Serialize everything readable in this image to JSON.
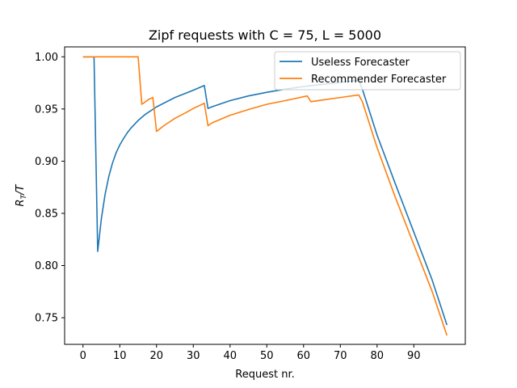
{
  "chart_data": {
    "type": "line",
    "title": "Zipf requests with C = 75, L = 5000",
    "xlabel": "Request nr.",
    "ylabel_main": "R",
    "ylabel_sub": "T",
    "ylabel_tail": "/T",
    "xlim": [
      -5,
      104
    ],
    "ylim": [
      0.7245,
      1.0095
    ],
    "xticks": [
      0,
      10,
      20,
      30,
      40,
      50,
      60,
      70,
      80,
      90
    ],
    "yticks": [
      0.75,
      0.8,
      0.85,
      0.9,
      0.95,
      1.0
    ],
    "ytick_labels": [
      "0.75",
      "0.80",
      "0.85",
      "0.90",
      "0.95",
      "1.00"
    ],
    "grid": false,
    "legend_position": "upper-right",
    "series": [
      {
        "name": "Useless Forecaster",
        "color": "#1f77b4",
        "points": [
          [
            0,
            1.0
          ],
          [
            3,
            1.0
          ],
          [
            4,
            0.8135
          ],
          [
            5,
            0.845
          ],
          [
            6,
            0.868
          ],
          [
            7,
            0.885
          ],
          [
            8,
            0.898
          ],
          [
            9,
            0.908
          ],
          [
            10,
            0.9155
          ],
          [
            11,
            0.9215
          ],
          [
            12,
            0.927
          ],
          [
            13,
            0.9315
          ],
          [
            15,
            0.939
          ],
          [
            17,
            0.945
          ],
          [
            20,
            0.952
          ],
          [
            25,
            0.961
          ],
          [
            30,
            0.968
          ],
          [
            33,
            0.9725
          ],
          [
            34,
            0.9505
          ],
          [
            35,
            0.952
          ],
          [
            40,
            0.958
          ],
          [
            45,
            0.9625
          ],
          [
            50,
            0.966
          ],
          [
            55,
            0.969
          ],
          [
            60,
            0.9715
          ],
          [
            65,
            0.9735
          ],
          [
            70,
            0.9755
          ],
          [
            75,
            0.9775
          ],
          [
            76,
            0.969
          ],
          [
            80,
            0.925
          ],
          [
            85,
            0.878
          ],
          [
            90,
            0.832
          ],
          [
            95,
            0.786
          ],
          [
            99,
            0.743
          ]
        ]
      },
      {
        "name": "Recommender Forecaster",
        "color": "#ff7f0e",
        "points": [
          [
            0,
            1.0
          ],
          [
            15,
            1.0
          ],
          [
            16,
            0.9545
          ],
          [
            18,
            0.9595
          ],
          [
            19,
            0.961
          ],
          [
            20,
            0.9285
          ],
          [
            22,
            0.934
          ],
          [
            25,
            0.941
          ],
          [
            28,
            0.9465
          ],
          [
            30,
            0.9505
          ],
          [
            33,
            0.9555
          ],
          [
            34,
            0.934
          ],
          [
            35,
            0.9365
          ],
          [
            40,
            0.944
          ],
          [
            45,
            0.9495
          ],
          [
            50,
            0.9545
          ],
          [
            55,
            0.958
          ],
          [
            61,
            0.9625
          ],
          [
            62,
            0.957
          ],
          [
            65,
            0.9585
          ],
          [
            70,
            0.961
          ],
          [
            75,
            0.9635
          ],
          [
            76,
            0.957
          ],
          [
            80,
            0.913
          ],
          [
            85,
            0.865
          ],
          [
            90,
            0.82
          ],
          [
            95,
            0.775
          ],
          [
            99,
            0.733
          ]
        ]
      }
    ]
  }
}
